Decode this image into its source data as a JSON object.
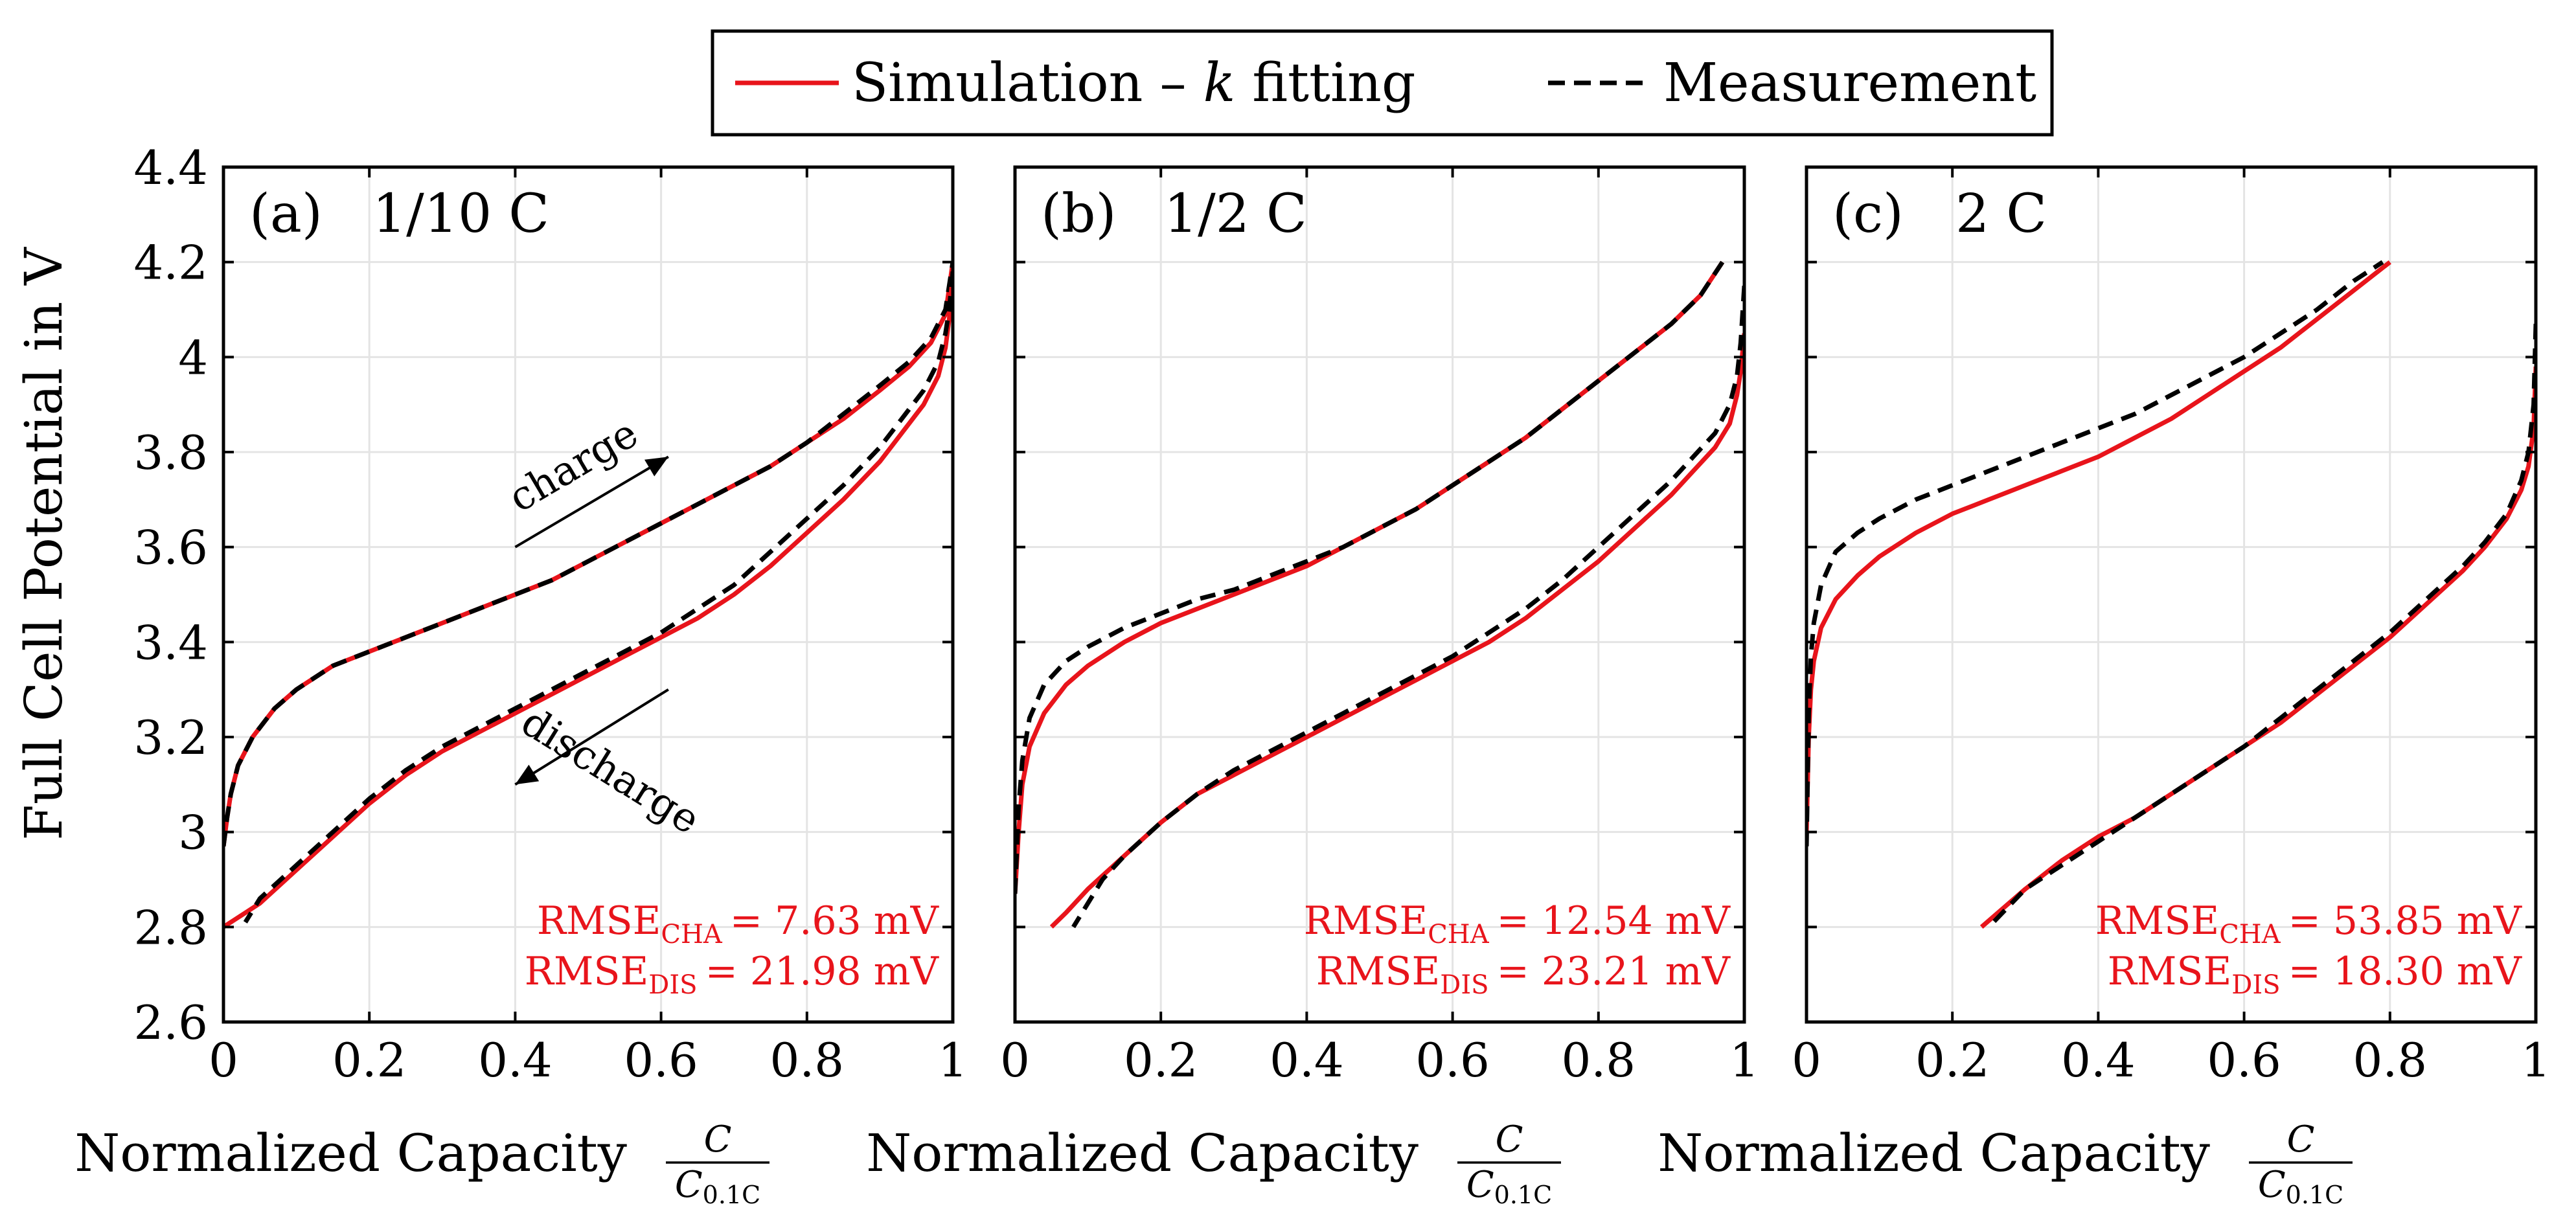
{
  "chart_data": {
    "type": "line",
    "ylabel": "Full Cell Potential in V",
    "xlabel": {
      "text": "Normalized Capacity",
      "numerator": "C",
      "denominator_main": "C",
      "denominator_sub": "0.1C"
    },
    "ylim": [
      2.6,
      4.4
    ],
    "xlim": [
      0,
      1
    ],
    "xticks": [
      "0",
      "0.2",
      "0.4",
      "0.6",
      "0.8",
      "1"
    ],
    "yticks": [
      "2.6",
      "2.8",
      "3",
      "3.2",
      "3.4",
      "3.6",
      "3.8",
      "4",
      "4.2",
      "4.4"
    ],
    "grid": true,
    "legend": {
      "position": "top-center",
      "entries": [
        {
          "label_main": "Simulation – ",
          "label_italic": "k",
          "label_tail": " fitting",
          "color": "#e8141b",
          "style": "solid"
        },
        {
          "label_main": "Measurement",
          "label_italic": "",
          "label_tail": "",
          "color": "#000000",
          "style": "dashed"
        }
      ]
    },
    "panels": [
      {
        "label": "(a)",
        "rate": "1/10 C",
        "rmse_cha_label": "RMSE",
        "rmse_cha_sub": "CHA",
        "rmse_cha_value": "=   7.63 mV",
        "rmse_dis_label": "RMSE",
        "rmse_dis_sub": "DIS",
        "rmse_dis_value": "= 21.98 mV",
        "annotations": [
          {
            "text": "charge",
            "direction": "up-right",
            "x_start": 0.4,
            "y_start": 3.6,
            "x_end": 0.61,
            "y_end": 3.79
          },
          {
            "text": "discharge",
            "direction": "down-left",
            "x_start": 0.61,
            "y_start": 3.3,
            "x_end": 0.4,
            "y_end": 3.1
          }
        ],
        "series": [
          {
            "name": "Simulation charge",
            "color": "#e8141b",
            "style": "solid",
            "x": [
              0,
              0.005,
              0.01,
              0.02,
              0.04,
              0.07,
              0.1,
              0.15,
              0.2,
              0.25,
              0.3,
              0.35,
              0.4,
              0.45,
              0.5,
              0.55,
              0.6,
              0.65,
              0.7,
              0.75,
              0.8,
              0.85,
              0.9,
              0.94,
              0.97,
              0.99,
              1.0
            ],
            "y": [
              2.97,
              3.03,
              3.08,
              3.14,
              3.2,
              3.26,
              3.3,
              3.35,
              3.38,
              3.41,
              3.44,
              3.47,
              3.5,
              3.53,
              3.57,
              3.61,
              3.65,
              3.69,
              3.73,
              3.77,
              3.82,
              3.87,
              3.93,
              3.98,
              4.03,
              4.09,
              4.2
            ]
          },
          {
            "name": "Measurement charge",
            "color": "#000000",
            "style": "dashed",
            "x": [
              0,
              0.005,
              0.01,
              0.02,
              0.04,
              0.07,
              0.1,
              0.15,
              0.2,
              0.25,
              0.3,
              0.35,
              0.4,
              0.45,
              0.5,
              0.55,
              0.6,
              0.65,
              0.7,
              0.75,
              0.8,
              0.85,
              0.9,
              0.94,
              0.97,
              0.99,
              1.0
            ],
            "y": [
              2.97,
              3.03,
              3.08,
              3.14,
              3.2,
              3.26,
              3.3,
              3.35,
              3.38,
              3.41,
              3.44,
              3.47,
              3.5,
              3.53,
              3.57,
              3.61,
              3.65,
              3.69,
              3.73,
              3.77,
              3.82,
              3.88,
              3.94,
              3.99,
              4.04,
              4.1,
              4.2
            ]
          },
          {
            "name": "Simulation discharge",
            "color": "#e8141b",
            "style": "solid",
            "x": [
              1.0,
              0.995,
              0.99,
              0.98,
              0.96,
              0.93,
              0.9,
              0.85,
              0.8,
              0.75,
              0.7,
              0.65,
              0.6,
              0.55,
              0.5,
              0.45,
              0.4,
              0.35,
              0.3,
              0.25,
              0.2,
              0.15,
              0.1,
              0.05,
              0.02,
              0.0
            ],
            "y": [
              4.18,
              4.08,
              4.02,
              3.96,
              3.9,
              3.84,
              3.78,
              3.7,
              3.63,
              3.56,
              3.5,
              3.45,
              3.41,
              3.37,
              3.33,
              3.29,
              3.25,
              3.21,
              3.17,
              3.12,
              3.06,
              2.99,
              2.92,
              2.85,
              2.82,
              2.8
            ]
          },
          {
            "name": "Measurement discharge",
            "color": "#000000",
            "style": "dashed",
            "x": [
              1.0,
              0.995,
              0.99,
              0.98,
              0.96,
              0.93,
              0.9,
              0.85,
              0.8,
              0.75,
              0.7,
              0.65,
              0.6,
              0.55,
              0.5,
              0.45,
              0.4,
              0.35,
              0.3,
              0.25,
              0.2,
              0.15,
              0.1,
              0.05,
              0.03
            ],
            "y": [
              4.18,
              4.1,
              4.05,
              3.99,
              3.93,
              3.87,
              3.81,
              3.73,
              3.66,
              3.59,
              3.52,
              3.47,
              3.42,
              3.38,
              3.34,
              3.3,
              3.26,
              3.22,
              3.18,
              3.13,
              3.07,
              3.0,
              2.93,
              2.86,
              2.81
            ]
          }
        ]
      },
      {
        "label": "(b)",
        "rate": "1/2 C",
        "rmse_cha_label": "RMSE",
        "rmse_cha_sub": "CHA",
        "rmse_cha_value": "= 12.54 mV",
        "rmse_dis_label": "RMSE",
        "rmse_dis_sub": "DIS",
        "rmse_dis_value": "= 23.21 mV",
        "annotations": [],
        "series": [
          {
            "name": "Simulation charge",
            "color": "#e8141b",
            "style": "solid",
            "x": [
              0,
              0.005,
              0.01,
              0.02,
              0.04,
              0.07,
              0.1,
              0.15,
              0.2,
              0.25,
              0.3,
              0.35,
              0.4,
              0.45,
              0.5,
              0.55,
              0.6,
              0.65,
              0.7,
              0.75,
              0.8,
              0.85,
              0.9,
              0.94,
              0.97
            ],
            "y": [
              2.87,
              3.0,
              3.1,
              3.18,
              3.25,
              3.31,
              3.35,
              3.4,
              3.44,
              3.47,
              3.5,
              3.53,
              3.56,
              3.6,
              3.64,
              3.68,
              3.73,
              3.78,
              3.83,
              3.89,
              3.95,
              4.01,
              4.07,
              4.13,
              4.2
            ]
          },
          {
            "name": "Measurement charge",
            "color": "#000000",
            "style": "dashed",
            "x": [
              0,
              0.005,
              0.01,
              0.02,
              0.04,
              0.07,
              0.1,
              0.15,
              0.2,
              0.25,
              0.3,
              0.35,
              0.4,
              0.45,
              0.5,
              0.55,
              0.6,
              0.65,
              0.7,
              0.75,
              0.8,
              0.85,
              0.9,
              0.94,
              0.97
            ],
            "y": [
              2.87,
              3.05,
              3.15,
              3.24,
              3.31,
              3.36,
              3.39,
              3.43,
              3.46,
              3.49,
              3.51,
              3.54,
              3.57,
              3.6,
              3.64,
              3.68,
              3.73,
              3.78,
              3.83,
              3.89,
              3.95,
              4.01,
              4.07,
              4.13,
              4.2
            ]
          },
          {
            "name": "Simulation discharge",
            "color": "#e8141b",
            "style": "solid",
            "x": [
              1.0,
              0.995,
              0.99,
              0.98,
              0.96,
              0.93,
              0.9,
              0.85,
              0.8,
              0.75,
              0.7,
              0.65,
              0.6,
              0.55,
              0.5,
              0.45,
              0.4,
              0.35,
              0.3,
              0.25,
              0.2,
              0.15,
              0.1,
              0.07,
              0.05
            ],
            "y": [
              4.05,
              3.97,
              3.92,
              3.86,
              3.81,
              3.76,
              3.71,
              3.64,
              3.57,
              3.51,
              3.45,
              3.4,
              3.36,
              3.32,
              3.28,
              3.24,
              3.2,
              3.16,
              3.12,
              3.08,
              3.02,
              2.95,
              2.88,
              2.83,
              2.8
            ]
          },
          {
            "name": "Measurement discharge",
            "color": "#000000",
            "style": "dashed",
            "x": [
              1.0,
              0.995,
              0.99,
              0.98,
              0.96,
              0.93,
              0.9,
              0.85,
              0.8,
              0.75,
              0.7,
              0.65,
              0.6,
              0.55,
              0.5,
              0.45,
              0.4,
              0.35,
              0.3,
              0.25,
              0.2,
              0.15,
              0.12,
              0.1,
              0.08
            ],
            "y": [
              4.15,
              4.03,
              3.96,
              3.9,
              3.84,
              3.79,
              3.74,
              3.67,
              3.6,
              3.53,
              3.47,
              3.42,
              3.37,
              3.33,
              3.29,
              3.25,
              3.21,
              3.17,
              3.13,
              3.08,
              3.02,
              2.95,
              2.9,
              2.85,
              2.8
            ]
          }
        ]
      },
      {
        "label": "(c)",
        "rate": "2 C",
        "rmse_cha_label": "RMSE",
        "rmse_cha_sub": "CHA",
        "rmse_cha_value": "= 53.85 mV",
        "rmse_dis_label": "RMSE",
        "rmse_dis_sub": "DIS",
        "rmse_dis_value": "= 18.30 mV",
        "annotations": [],
        "series": [
          {
            "name": "Simulation charge",
            "color": "#e8141b",
            "style": "solid",
            "x": [
              0,
              0.003,
              0.006,
              0.01,
              0.02,
              0.04,
              0.07,
              0.1,
              0.15,
              0.2,
              0.25,
              0.3,
              0.35,
              0.4,
              0.45,
              0.5,
              0.55,
              0.6,
              0.65,
              0.7,
              0.75,
              0.8
            ],
            "y": [
              3.0,
              3.2,
              3.3,
              3.36,
              3.43,
              3.49,
              3.54,
              3.58,
              3.63,
              3.67,
              3.7,
              3.73,
              3.76,
              3.79,
              3.83,
              3.87,
              3.92,
              3.97,
              4.02,
              4.08,
              4.14,
              4.2
            ]
          },
          {
            "name": "Measurement charge",
            "color": "#000000",
            "style": "dashed",
            "x": [
              0,
              0.003,
              0.006,
              0.01,
              0.02,
              0.04,
              0.07,
              0.1,
              0.15,
              0.2,
              0.25,
              0.3,
              0.35,
              0.4,
              0.45,
              0.5,
              0.55,
              0.6,
              0.65,
              0.7,
              0.75,
              0.79
            ],
            "y": [
              2.97,
              3.25,
              3.37,
              3.44,
              3.52,
              3.59,
              3.63,
              3.66,
              3.7,
              3.73,
              3.76,
              3.79,
              3.82,
              3.85,
              3.88,
              3.92,
              3.96,
              4.0,
              4.05,
              4.1,
              4.16,
              4.2
            ]
          },
          {
            "name": "Simulation discharge",
            "color": "#e8141b",
            "style": "solid",
            "x": [
              1.0,
              0.997,
              0.99,
              0.98,
              0.96,
              0.93,
              0.9,
              0.85,
              0.8,
              0.75,
              0.7,
              0.65,
              0.6,
              0.55,
              0.5,
              0.45,
              0.4,
              0.35,
              0.3,
              0.24
            ],
            "y": [
              3.98,
              3.85,
              3.77,
              3.72,
              3.66,
              3.6,
              3.55,
              3.48,
              3.41,
              3.35,
              3.29,
              3.23,
              3.18,
              3.13,
              3.08,
              3.03,
              2.99,
              2.94,
              2.88,
              2.8
            ]
          },
          {
            "name": "Measurement discharge",
            "color": "#000000",
            "style": "dashed",
            "x": [
              1.0,
              0.997,
              0.99,
              0.98,
              0.96,
              0.93,
              0.9,
              0.85,
              0.8,
              0.75,
              0.7,
              0.65,
              0.6,
              0.55,
              0.5,
              0.45,
              0.4,
              0.35,
              0.3,
              0.25
            ],
            "y": [
              4.07,
              3.9,
              3.8,
              3.74,
              3.67,
              3.61,
              3.56,
              3.49,
              3.42,
              3.36,
              3.3,
              3.24,
              3.18,
              3.13,
              3.08,
              3.03,
              2.98,
              2.93,
              2.88,
              2.8
            ]
          }
        ]
      }
    ]
  }
}
